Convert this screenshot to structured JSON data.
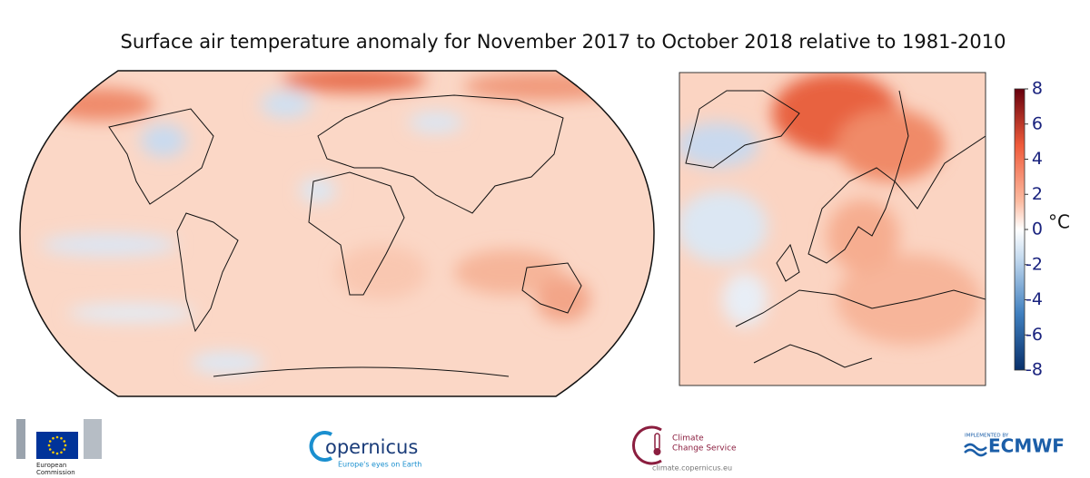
{
  "title": "Surface air temperature anomaly for November 2017 to October 2018 relative to 1981-2010",
  "colorbar": {
    "lim": [
      -8,
      8
    ],
    "ticks": [
      8,
      6,
      4,
      2,
      0,
      -2,
      -4,
      -6,
      -8
    ],
    "unit": "°C"
  },
  "logos": {
    "european_commission": [
      "European",
      "Commission"
    ],
    "copernicus": {
      "name": "opernicus",
      "tagline": "Europe's eyes on Earth"
    },
    "climate_change_service": {
      "name": [
        "Climate",
        "Change Service"
      ],
      "url": "climate.copernicus.eu"
    },
    "ecmwf": {
      "caption": "IMPLEMENTED BY",
      "name": "ECMWF"
    }
  }
}
